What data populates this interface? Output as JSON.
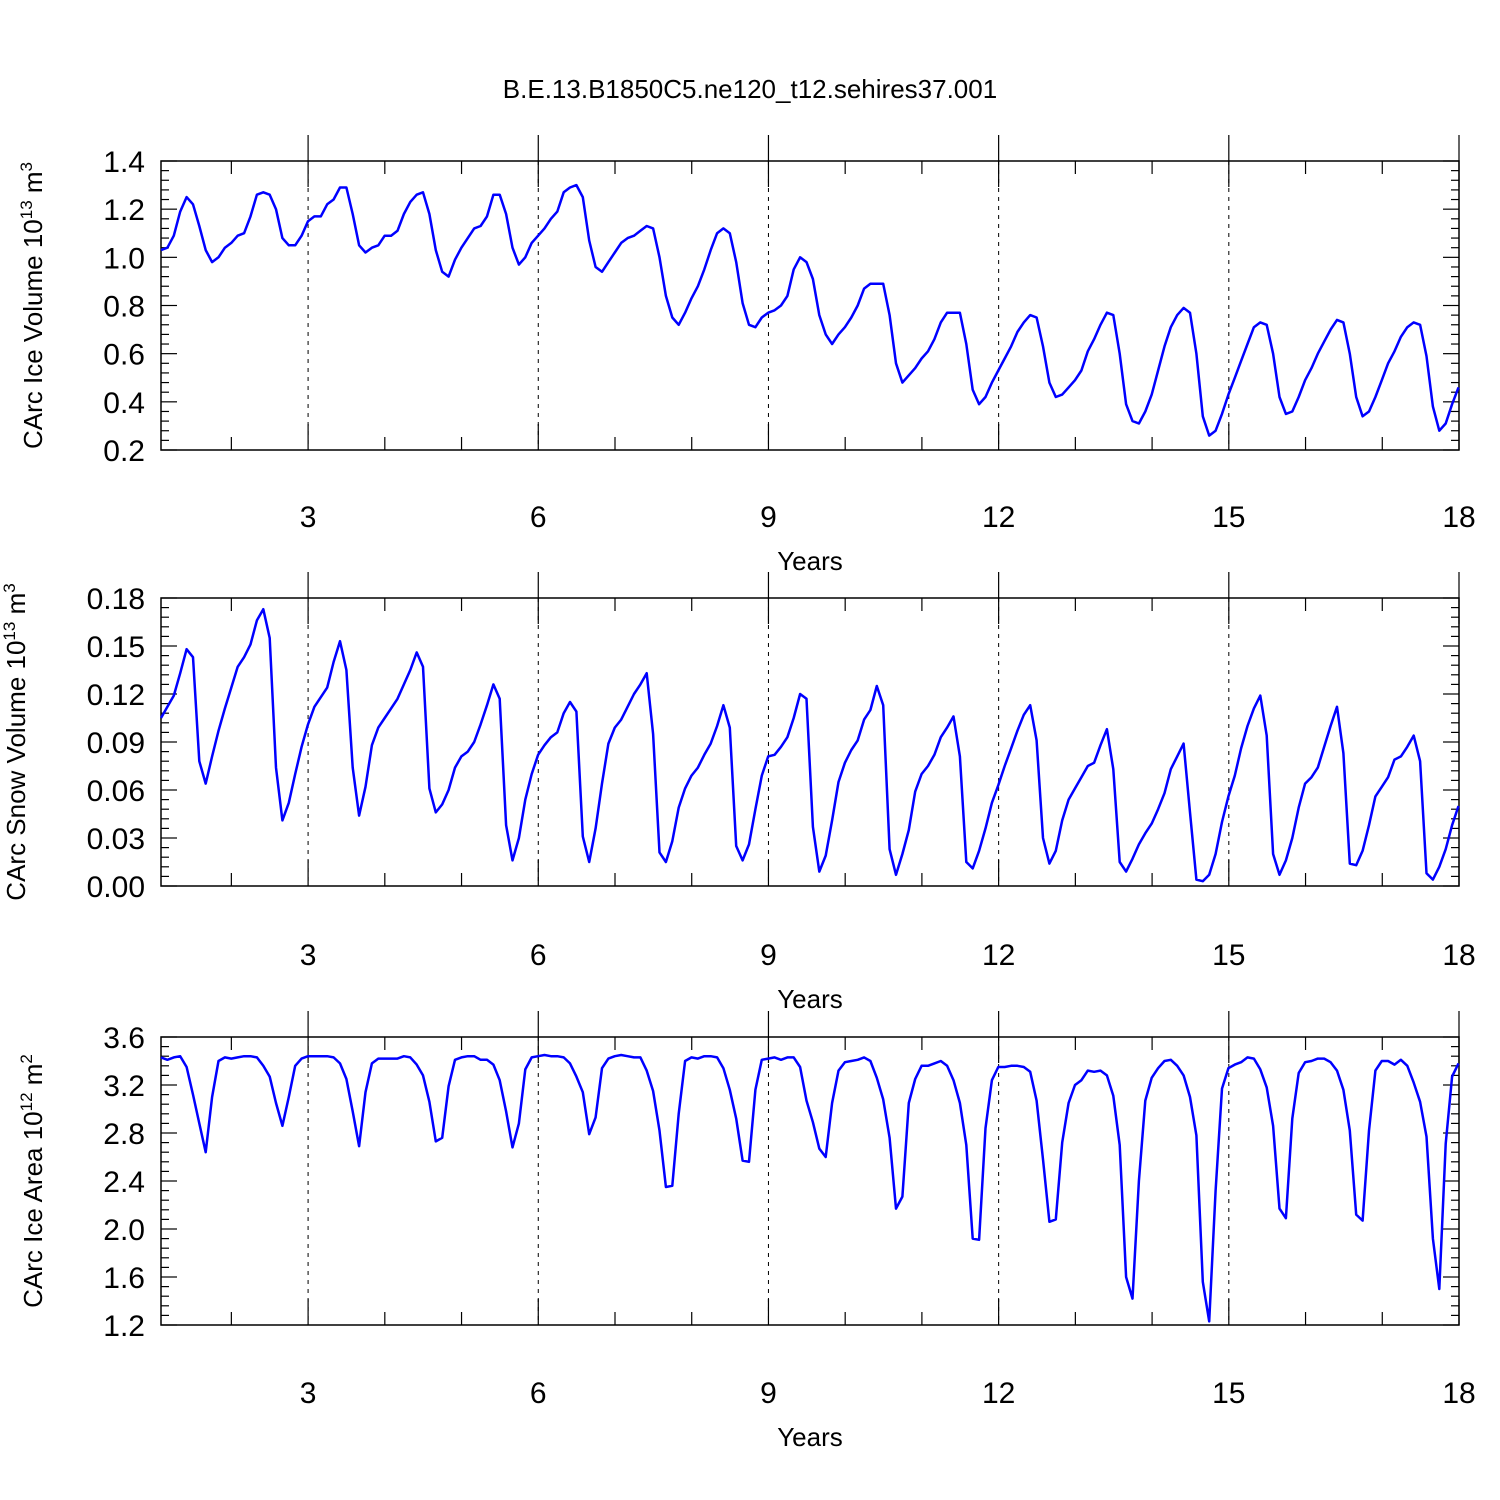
{
  "title": "B.E.13.B1850C5.ne120_t12.sehires37.001",
  "chart_data": [
    {
      "type": "line",
      "name": "ice-volume",
      "xlabel": "Years",
      "ylabel": "CArc Ice Volume 10",
      "ylabel_sup": "13",
      "ylabel_unit": " m",
      "ylabel_unit_sup": "3",
      "xlim": [
        1.083,
        18.0
      ],
      "ylim": [
        0.2,
        1.4
      ],
      "xticks": [
        3,
        6,
        9,
        12,
        15,
        18
      ],
      "xtick_labels": [
        "3",
        "6",
        "9",
        "12",
        "15",
        "18"
      ],
      "yticks": [
        0.2,
        0.4,
        0.6,
        0.8,
        1.0,
        1.2,
        1.4
      ],
      "ytick_labels": [
        "0.2",
        "0.4",
        "0.6",
        "0.8",
        "1.0",
        "1.2",
        "1.4"
      ],
      "color": "#0000ff",
      "start_year": 1.083,
      "step": 0.0833,
      "values": [
        1.03,
        1.04,
        1.09,
        1.19,
        1.25,
        1.22,
        1.13,
        1.03,
        0.98,
        1.0,
        1.04,
        1.06,
        1.09,
        1.1,
        1.17,
        1.26,
        1.27,
        1.26,
        1.2,
        1.08,
        1.05,
        1.05,
        1.09,
        1.15,
        1.17,
        1.17,
        1.22,
        1.24,
        1.29,
        1.29,
        1.18,
        1.05,
        1.02,
        1.04,
        1.05,
        1.09,
        1.09,
        1.11,
        1.18,
        1.23,
        1.26,
        1.27,
        1.18,
        1.03,
        0.94,
        0.92,
        0.99,
        1.04,
        1.08,
        1.12,
        1.13,
        1.17,
        1.26,
        1.26,
        1.18,
        1.04,
        0.97,
        1.0,
        1.06,
        1.09,
        1.12,
        1.16,
        1.19,
        1.27,
        1.29,
        1.3,
        1.25,
        1.07,
        0.96,
        0.94,
        0.98,
        1.02,
        1.06,
        1.08,
        1.09,
        1.11,
        1.13,
        1.12,
        1.0,
        0.84,
        0.75,
        0.72,
        0.77,
        0.83,
        0.88,
        0.95,
        1.03,
        1.1,
        1.12,
        1.1,
        0.98,
        0.81,
        0.72,
        0.71,
        0.75,
        0.77,
        0.78,
        0.8,
        0.84,
        0.95,
        1.0,
        0.98,
        0.91,
        0.76,
        0.68,
        0.64,
        0.68,
        0.71,
        0.75,
        0.8,
        0.87,
        0.89,
        0.89,
        0.89,
        0.76,
        0.56,
        0.48,
        0.51,
        0.54,
        0.58,
        0.61,
        0.66,
        0.73,
        0.77,
        0.77,
        0.77,
        0.64,
        0.45,
        0.39,
        0.42,
        0.48,
        0.53,
        0.58,
        0.63,
        0.69,
        0.73,
        0.76,
        0.75,
        0.63,
        0.48,
        0.42,
        0.43,
        0.46,
        0.49,
        0.53,
        0.61,
        0.66,
        0.72,
        0.77,
        0.76,
        0.6,
        0.39,
        0.32,
        0.31,
        0.36,
        0.43,
        0.53,
        0.63,
        0.71,
        0.76,
        0.79,
        0.77,
        0.6,
        0.34,
        0.26,
        0.28,
        0.35,
        0.43,
        0.5,
        0.57,
        0.64,
        0.71,
        0.73,
        0.72,
        0.6,
        0.42,
        0.35,
        0.36,
        0.42,
        0.49,
        0.54,
        0.6,
        0.65,
        0.7,
        0.74,
        0.73,
        0.6,
        0.42,
        0.34,
        0.36,
        0.42,
        0.49,
        0.56,
        0.61,
        0.67,
        0.71,
        0.73,
        0.72,
        0.59,
        0.38,
        0.28,
        0.31,
        0.39,
        0.46
      ]
    },
    {
      "type": "line",
      "name": "snow-volume",
      "xlabel": "Years",
      "ylabel": "CArc Snow Volume 10",
      "ylabel_sup": "13",
      "ylabel_unit": " m",
      "ylabel_unit_sup": "3",
      "xlim": [
        1.083,
        18.0
      ],
      "ylim": [
        0.0,
        0.18
      ],
      "xticks": [
        3,
        6,
        9,
        12,
        15,
        18
      ],
      "xtick_labels": [
        "3",
        "6",
        "9",
        "12",
        "15",
        "18"
      ],
      "yticks": [
        0.0,
        0.03,
        0.06,
        0.09,
        0.12,
        0.15,
        0.18
      ],
      "ytick_labels": [
        "0.00",
        "0.03",
        "0.06",
        "0.09",
        "0.12",
        "0.15",
        "0.18"
      ],
      "color": "#0000ff",
      "start_year": 1.083,
      "step": 0.0833,
      "values": [
        0.105,
        0.112,
        0.119,
        0.133,
        0.148,
        0.143,
        0.078,
        0.064,
        0.081,
        0.097,
        0.111,
        0.124,
        0.137,
        0.143,
        0.151,
        0.166,
        0.173,
        0.155,
        0.074,
        0.041,
        0.052,
        0.07,
        0.087,
        0.101,
        0.112,
        0.118,
        0.124,
        0.14,
        0.153,
        0.135,
        0.074,
        0.044,
        0.062,
        0.088,
        0.099,
        0.105,
        0.111,
        0.117,
        0.126,
        0.135,
        0.146,
        0.137,
        0.061,
        0.046,
        0.051,
        0.06,
        0.074,
        0.081,
        0.084,
        0.09,
        0.101,
        0.113,
        0.126,
        0.117,
        0.038,
        0.016,
        0.03,
        0.054,
        0.07,
        0.082,
        0.088,
        0.093,
        0.096,
        0.108,
        0.115,
        0.109,
        0.031,
        0.015,
        0.036,
        0.064,
        0.089,
        0.099,
        0.104,
        0.112,
        0.12,
        0.126,
        0.133,
        0.095,
        0.021,
        0.015,
        0.028,
        0.049,
        0.061,
        0.069,
        0.074,
        0.082,
        0.089,
        0.1,
        0.113,
        0.099,
        0.025,
        0.016,
        0.026,
        0.048,
        0.069,
        0.081,
        0.082,
        0.087,
        0.093,
        0.105,
        0.12,
        0.117,
        0.037,
        0.009,
        0.019,
        0.041,
        0.065,
        0.077,
        0.085,
        0.091,
        0.104,
        0.11,
        0.125,
        0.113,
        0.023,
        0.007,
        0.02,
        0.035,
        0.059,
        0.07,
        0.075,
        0.082,
        0.093,
        0.099,
        0.106,
        0.081,
        0.015,
        0.011,
        0.022,
        0.036,
        0.052,
        0.063,
        0.075,
        0.086,
        0.097,
        0.107,
        0.113,
        0.091,
        0.03,
        0.014,
        0.022,
        0.041,
        0.054,
        0.061,
        0.068,
        0.075,
        0.077,
        0.088,
        0.098,
        0.073,
        0.015,
        0.009,
        0.017,
        0.026,
        0.033,
        0.039,
        0.048,
        0.058,
        0.073,
        0.081,
        0.089,
        0.046,
        0.004,
        0.003,
        0.007,
        0.02,
        0.04,
        0.056,
        0.069,
        0.086,
        0.1,
        0.111,
        0.119,
        0.094,
        0.02,
        0.007,
        0.016,
        0.03,
        0.049,
        0.064,
        0.068,
        0.074,
        0.087,
        0.1,
        0.112,
        0.083,
        0.014,
        0.013,
        0.022,
        0.038,
        0.056,
        0.062,
        0.068,
        0.079,
        0.081,
        0.087,
        0.094,
        0.078,
        0.008,
        0.004,
        0.012,
        0.023,
        0.038,
        0.05
      ]
    },
    {
      "type": "line",
      "name": "ice-area",
      "xlabel": "Years",
      "ylabel": "CArc Ice Area 10",
      "ylabel_sup": "12",
      "ylabel_unit": " m",
      "ylabel_unit_sup": "2",
      "xlim": [
        1.083,
        18.0
      ],
      "ylim": [
        1.2,
        3.6
      ],
      "xticks": [
        3,
        6,
        9,
        12,
        15,
        18
      ],
      "xtick_labels": [
        "3",
        "6",
        "9",
        "12",
        "15",
        "18"
      ],
      "yticks": [
        1.2,
        1.6,
        2.0,
        2.4,
        2.8,
        3.2,
        3.6
      ],
      "ytick_labels": [
        "1.2",
        "1.6",
        "2.0",
        "2.4",
        "2.8",
        "3.2",
        "3.6"
      ],
      "color": "#0000ff",
      "start_year": 1.083,
      "step": 0.0833,
      "values": [
        3.43,
        3.41,
        3.43,
        3.44,
        3.35,
        3.12,
        2.88,
        2.64,
        3.1,
        3.4,
        3.43,
        3.42,
        3.43,
        3.44,
        3.44,
        3.43,
        3.36,
        3.27,
        3.05,
        2.86,
        3.1,
        3.36,
        3.42,
        3.44,
        3.44,
        3.44,
        3.44,
        3.43,
        3.38,
        3.25,
        2.98,
        2.69,
        3.14,
        3.38,
        3.42,
        3.42,
        3.42,
        3.42,
        3.44,
        3.43,
        3.37,
        3.28,
        3.06,
        2.73,
        2.76,
        3.19,
        3.41,
        3.43,
        3.44,
        3.44,
        3.41,
        3.41,
        3.37,
        3.24,
        2.98,
        2.68,
        2.88,
        3.33,
        3.43,
        3.44,
        3.45,
        3.44,
        3.44,
        3.43,
        3.38,
        3.27,
        3.14,
        2.79,
        2.93,
        3.34,
        3.42,
        3.44,
        3.45,
        3.44,
        3.43,
        3.43,
        3.32,
        3.15,
        2.82,
        2.35,
        2.36,
        2.96,
        3.4,
        3.43,
        3.42,
        3.44,
        3.44,
        3.43,
        3.34,
        3.16,
        2.92,
        2.57,
        2.56,
        3.16,
        3.41,
        3.42,
        3.43,
        3.41,
        3.43,
        3.43,
        3.35,
        3.07,
        2.89,
        2.67,
        2.6,
        3.05,
        3.32,
        3.39,
        3.4,
        3.41,
        3.43,
        3.4,
        3.26,
        3.08,
        2.76,
        2.17,
        2.27,
        3.05,
        3.25,
        3.36,
        3.36,
        3.38,
        3.4,
        3.36,
        3.24,
        3.05,
        2.7,
        1.92,
        1.91,
        2.84,
        3.24,
        3.35,
        3.35,
        3.36,
        3.36,
        3.35,
        3.31,
        3.07,
        2.58,
        2.06,
        2.08,
        2.72,
        3.05,
        3.2,
        3.24,
        3.32,
        3.31,
        3.32,
        3.28,
        3.11,
        2.7,
        1.6,
        1.42,
        2.4,
        3.07,
        3.26,
        3.34,
        3.4,
        3.41,
        3.36,
        3.28,
        3.1,
        2.78,
        1.56,
        1.23,
        2.32,
        3.17,
        3.34,
        3.37,
        3.39,
        3.43,
        3.42,
        3.33,
        3.18,
        2.86,
        2.17,
        2.09,
        2.92,
        3.3,
        3.39,
        3.4,
        3.42,
        3.42,
        3.39,
        3.32,
        3.16,
        2.82,
        2.12,
        2.07,
        2.82,
        3.32,
        3.4,
        3.4,
        3.37,
        3.41,
        3.36,
        3.22,
        3.06,
        2.77,
        1.92,
        1.5,
        2.71,
        3.27,
        3.38
      ]
    }
  ]
}
